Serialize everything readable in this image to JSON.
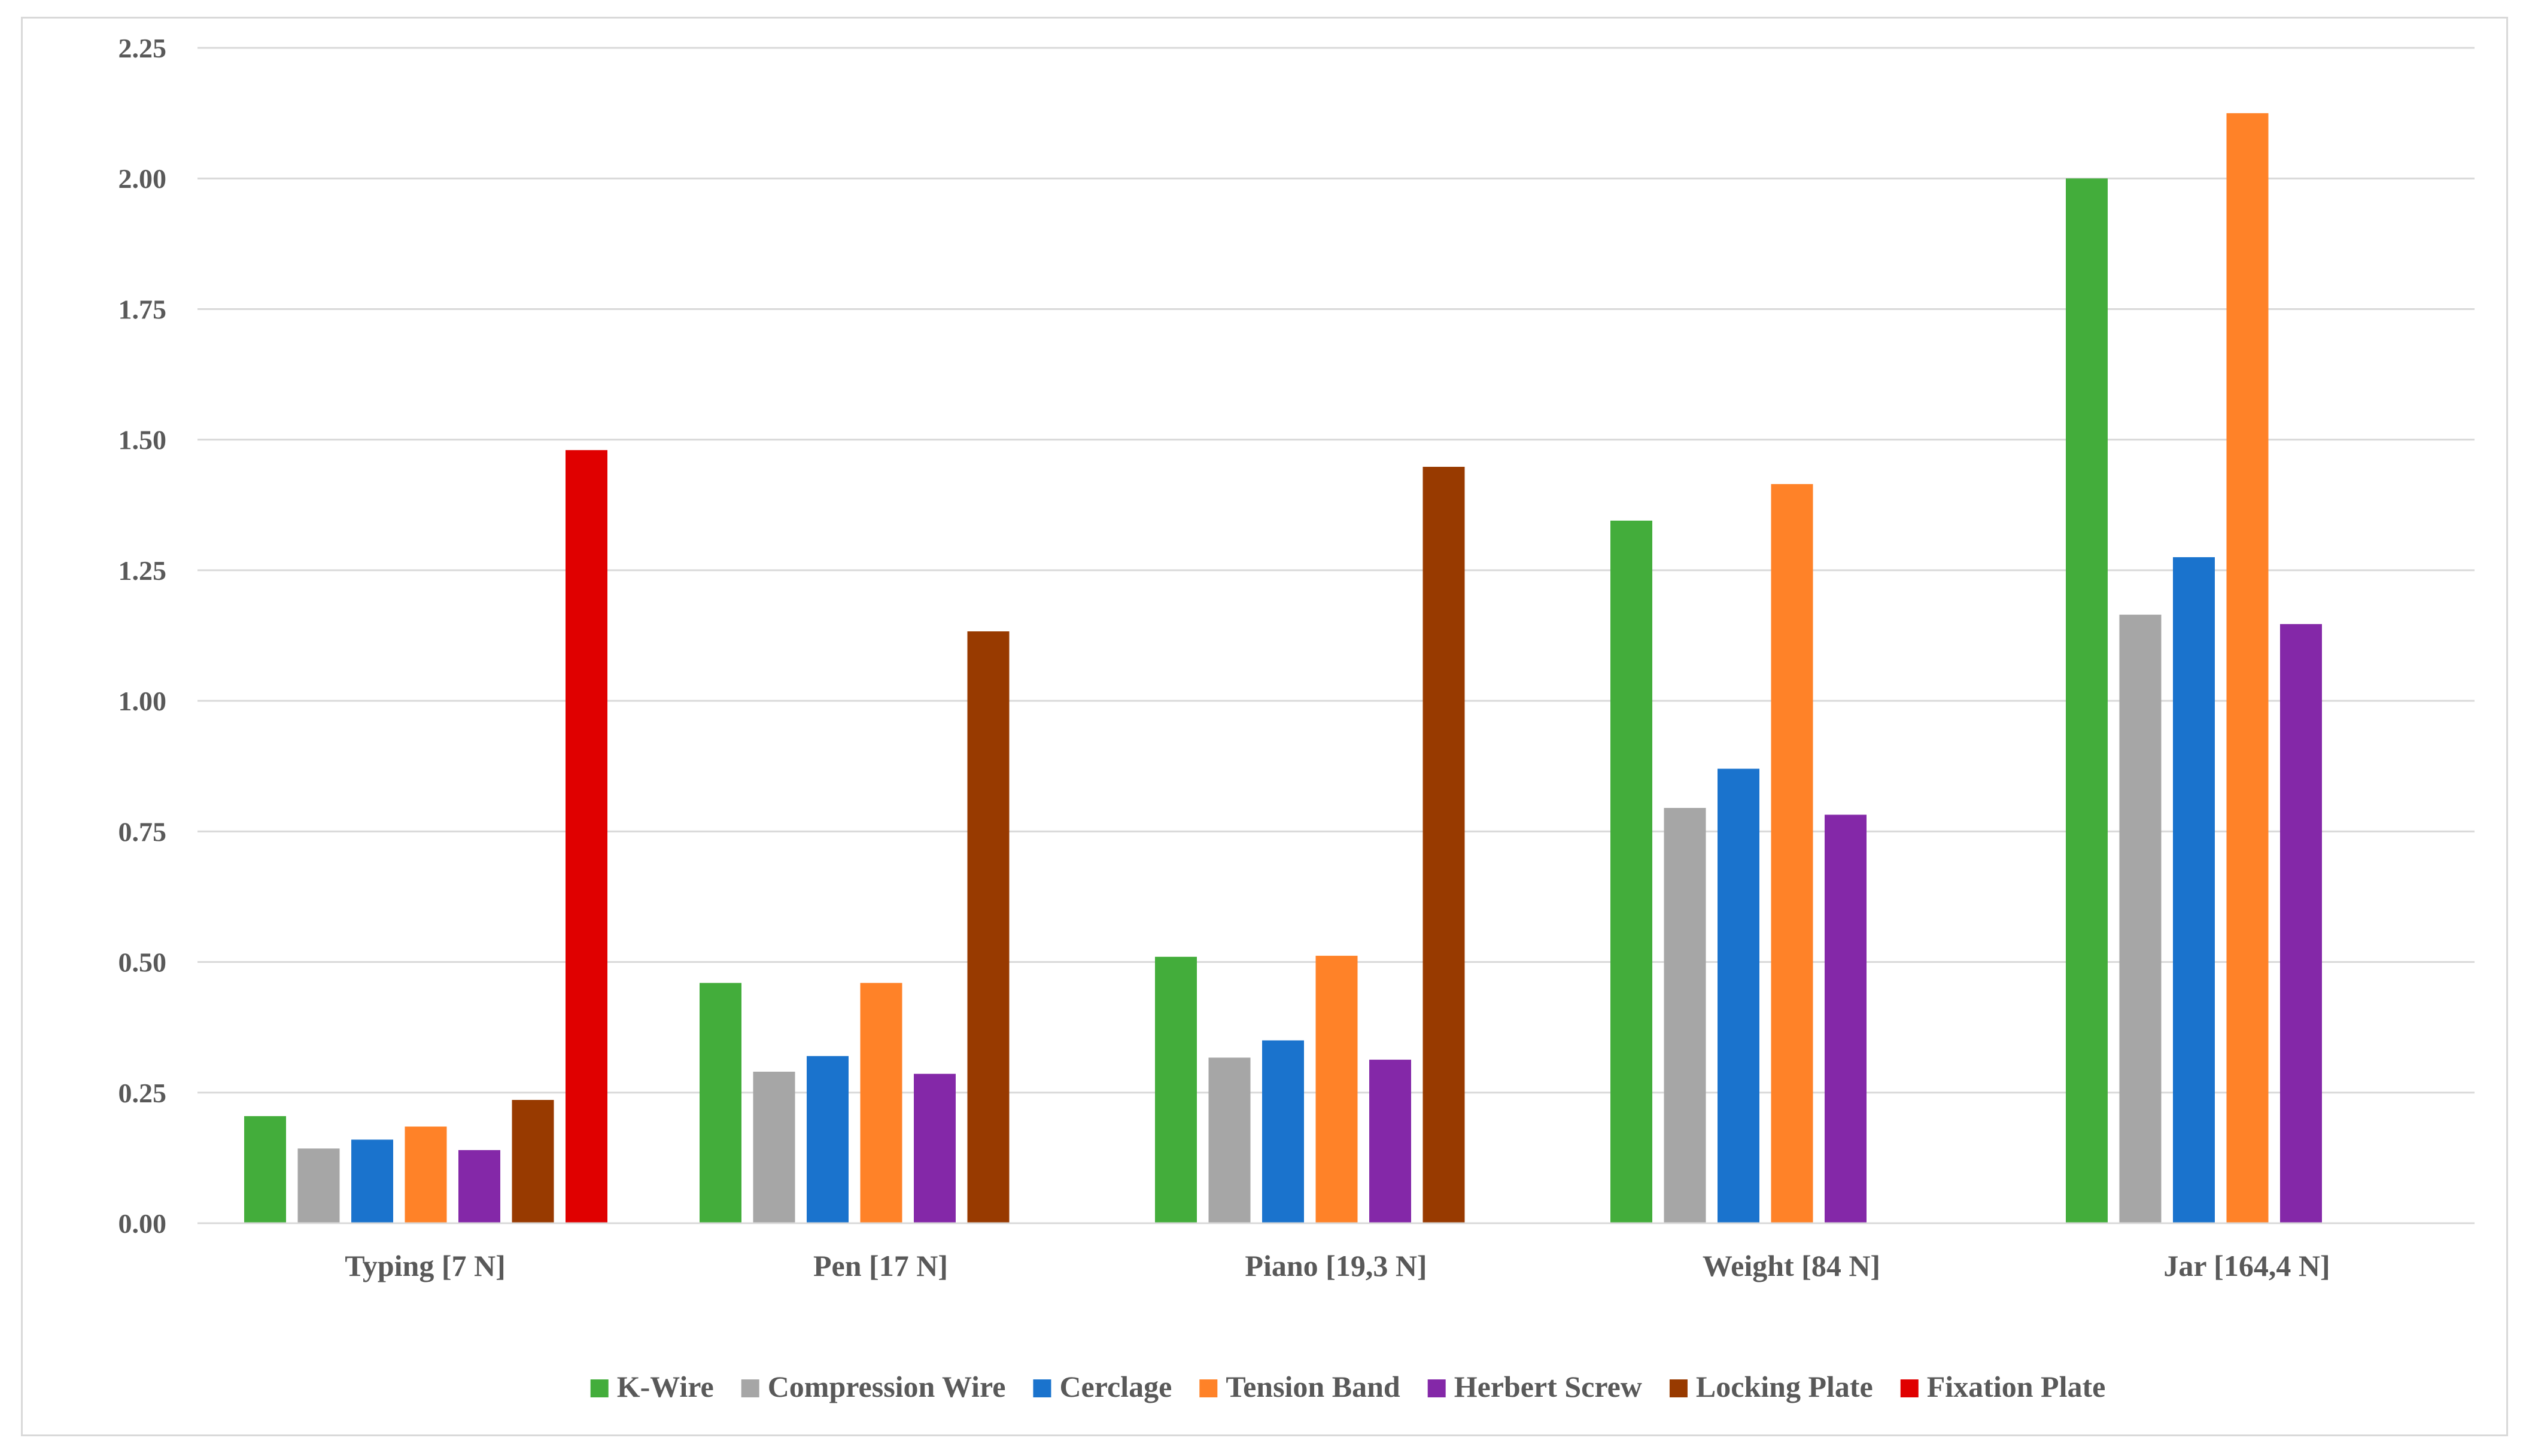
{
  "chart_data": {
    "type": "bar",
    "title": "",
    "xlabel": "",
    "ylabel": "",
    "ylim": [
      0,
      2.25
    ],
    "yticks": [
      "0.00",
      "0.25",
      "0.50",
      "0.75",
      "1.00",
      "1.25",
      "1.50",
      "1.75",
      "2.00",
      "2.25"
    ],
    "grid": true,
    "legend_position": "bottom",
    "categories": [
      "Typing [7 N]",
      "Pen [17 N]",
      "Piano [19,3 N]",
      "Weight [84 N]",
      "Jar [164,4 N]"
    ],
    "series": [
      {
        "name": "K-Wire",
        "color": "#43ad3b",
        "values": [
          0.205,
          0.46,
          0.51,
          1.345,
          2.0
        ]
      },
      {
        "name": "Compression Wire",
        "color": "#a6a6a6",
        "values": [
          0.143,
          0.29,
          0.317,
          0.795,
          1.165
        ]
      },
      {
        "name": "Cerclage",
        "color": "#1a73cd",
        "values": [
          0.16,
          0.32,
          0.35,
          0.87,
          1.275
        ]
      },
      {
        "name": "Tension Band",
        "color": "#ff8228",
        "values": [
          0.185,
          0.46,
          0.512,
          1.415,
          2.125
        ]
      },
      {
        "name": "Herbert Screw",
        "color": "#8428a8",
        "values": [
          0.14,
          0.286,
          0.313,
          0.782,
          1.147
        ]
      },
      {
        "name": "Locking Plate",
        "color": "#983a00",
        "values": [
          0.236,
          1.133,
          1.448,
          null,
          null
        ]
      },
      {
        "name": "Fixation Plate",
        "color": "#e00000",
        "values": [
          1.48,
          null,
          null,
          null,
          null
        ]
      }
    ]
  }
}
